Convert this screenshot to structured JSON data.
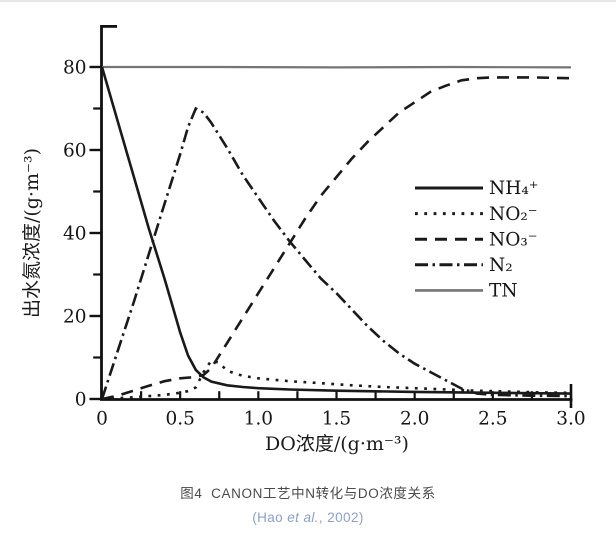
{
  "figure": {
    "caption": "图4  CANON工艺中N转化与DO浓度关系",
    "caption_color": "#4a4a4a",
    "citation": {
      "pre": "(Hao ",
      "italic": "et al.",
      "post": ", 2002)"
    },
    "citation_color": "#8c9fd0"
  },
  "chart_data": {
    "type": "line",
    "title": "图4 CANON工艺中N转化与DO浓度关系",
    "xlabel": "DO浓度/(g·m⁻³)",
    "ylabel": "出水氮浓度/(g·m⁻³)",
    "xlim": [
      0,
      3.0
    ],
    "ylim": [
      0,
      80
    ],
    "grid": false,
    "legend_position": "right-middle",
    "xticks": [
      {
        "v": 0,
        "label": "0"
      },
      {
        "v": 0.5,
        "label": "0.5"
      },
      {
        "v": 1.0,
        "label": "1.0"
      },
      {
        "v": 1.5,
        "label": "1.5"
      },
      {
        "v": 2.0,
        "label": "2.0"
      },
      {
        "v": 2.5,
        "label": "2.5"
      },
      {
        "v": 3.0,
        "label": "3.0"
      }
    ],
    "x_minor_ticks": [
      0.25,
      0.5,
      0.75,
      1.0,
      1.25,
      1.5,
      1.75,
      2.0,
      2.25,
      2.5,
      2.75
    ],
    "yticks": [
      {
        "v": 0,
        "label": "0"
      },
      {
        "v": 20,
        "label": "20"
      },
      {
        "v": 40,
        "label": "40"
      },
      {
        "v": 60,
        "label": "60"
      },
      {
        "v": 80,
        "label": "80"
      }
    ],
    "y_minor_ticks": [
      10,
      30,
      50,
      70
    ],
    "series": [
      {
        "id": "nh4",
        "name": "NH₄⁺",
        "style": "solid",
        "color": "#1a1a1a",
        "stroke_width": 2.6,
        "points": [
          [
            0,
            80
          ],
          [
            0.1,
            67
          ],
          [
            0.2,
            54
          ],
          [
            0.3,
            41
          ],
          [
            0.4,
            29
          ],
          [
            0.45,
            22.5
          ],
          [
            0.5,
            16
          ],
          [
            0.55,
            10.5
          ],
          [
            0.6,
            7
          ],
          [
            0.65,
            5.2
          ],
          [
            0.7,
            4.2
          ],
          [
            0.8,
            3.3
          ],
          [
            0.9,
            2.9
          ],
          [
            1.0,
            2.6
          ],
          [
            1.2,
            2.3
          ],
          [
            1.5,
            2.0
          ],
          [
            2.0,
            1.7
          ],
          [
            2.5,
            1.5
          ],
          [
            3.0,
            1.3
          ]
        ]
      },
      {
        "id": "no2",
        "name": "NO₂⁻",
        "style": "dotted",
        "color": "#1a1a1a",
        "stroke_width": 2.6,
        "points": [
          [
            0,
            0
          ],
          [
            0.1,
            0.2
          ],
          [
            0.2,
            0.4
          ],
          [
            0.3,
            0.7
          ],
          [
            0.4,
            1.0
          ],
          [
            0.5,
            1.5
          ],
          [
            0.55,
            1.9
          ],
          [
            0.6,
            2.8
          ],
          [
            0.65,
            6.5
          ],
          [
            0.7,
            9.3
          ],
          [
            0.75,
            8.7
          ],
          [
            0.8,
            6.8
          ],
          [
            0.9,
            5.6
          ],
          [
            1.0,
            5.0
          ],
          [
            1.2,
            4.3
          ],
          [
            1.4,
            3.8
          ],
          [
            1.6,
            3.3
          ],
          [
            1.8,
            2.9
          ],
          [
            2.0,
            2.6
          ],
          [
            2.2,
            2.3
          ],
          [
            2.4,
            2.0
          ],
          [
            2.6,
            1.8
          ],
          [
            2.8,
            1.6
          ],
          [
            3.0,
            1.5
          ]
        ]
      },
      {
        "id": "no3",
        "name": "NO₃⁻",
        "style": "dashed",
        "color": "#1a1a1a",
        "stroke_width": 2.6,
        "points": [
          [
            0,
            0
          ],
          [
            0.1,
            0.8
          ],
          [
            0.2,
            2.0
          ],
          [
            0.3,
            3.2
          ],
          [
            0.4,
            4.3
          ],
          [
            0.5,
            5.0
          ],
          [
            0.6,
            5.3
          ],
          [
            0.65,
            5.8
          ],
          [
            0.7,
            7.5
          ],
          [
            0.8,
            13.5
          ],
          [
            0.9,
            19.5
          ],
          [
            1.0,
            25.5
          ],
          [
            1.1,
            31.5
          ],
          [
            1.2,
            37.5
          ],
          [
            1.3,
            43.5
          ],
          [
            1.4,
            49
          ],
          [
            1.5,
            53.5
          ],
          [
            1.6,
            58
          ],
          [
            1.7,
            62
          ],
          [
            1.8,
            65.5
          ],
          [
            1.9,
            69
          ],
          [
            2.0,
            71.5
          ],
          [
            2.1,
            74
          ],
          [
            2.2,
            75.5
          ],
          [
            2.3,
            76.8
          ],
          [
            2.4,
            77.3
          ],
          [
            2.5,
            77.5
          ],
          [
            2.75,
            77.5
          ],
          [
            3.0,
            77.3
          ]
        ]
      },
      {
        "id": "n2",
        "name": "N₂",
        "style": "dashdot",
        "color": "#1a1a1a",
        "stroke_width": 2.6,
        "points": [
          [
            0,
            0
          ],
          [
            0.1,
            11.5
          ],
          [
            0.2,
            23
          ],
          [
            0.3,
            35
          ],
          [
            0.4,
            47
          ],
          [
            0.5,
            59
          ],
          [
            0.55,
            65.5
          ],
          [
            0.6,
            70
          ],
          [
            0.65,
            69
          ],
          [
            0.7,
            66.5
          ],
          [
            0.8,
            60.5
          ],
          [
            0.9,
            54
          ],
          [
            1.0,
            48.5
          ],
          [
            1.1,
            43
          ],
          [
            1.2,
            38
          ],
          [
            1.3,
            33.5
          ],
          [
            1.4,
            29
          ],
          [
            1.5,
            25.5
          ],
          [
            1.6,
            21.5
          ],
          [
            1.7,
            17.5
          ],
          [
            1.8,
            14
          ],
          [
            1.9,
            11
          ],
          [
            2.0,
            8.5
          ],
          [
            2.1,
            6.5
          ],
          [
            2.2,
            4.5
          ],
          [
            2.3,
            2.5
          ],
          [
            2.4,
            1.3
          ],
          [
            2.5,
            1.0
          ],
          [
            2.75,
            0.8
          ],
          [
            3.0,
            0.7
          ]
        ]
      },
      {
        "id": "tn",
        "name": "TN",
        "style": "solid",
        "color": "#757575",
        "stroke_width": 2.2,
        "points": [
          [
            0,
            80
          ],
          [
            0.75,
            80
          ],
          [
            1.5,
            79.9
          ],
          [
            2.25,
            80
          ],
          [
            3.0,
            79.9
          ]
        ]
      }
    ]
  }
}
